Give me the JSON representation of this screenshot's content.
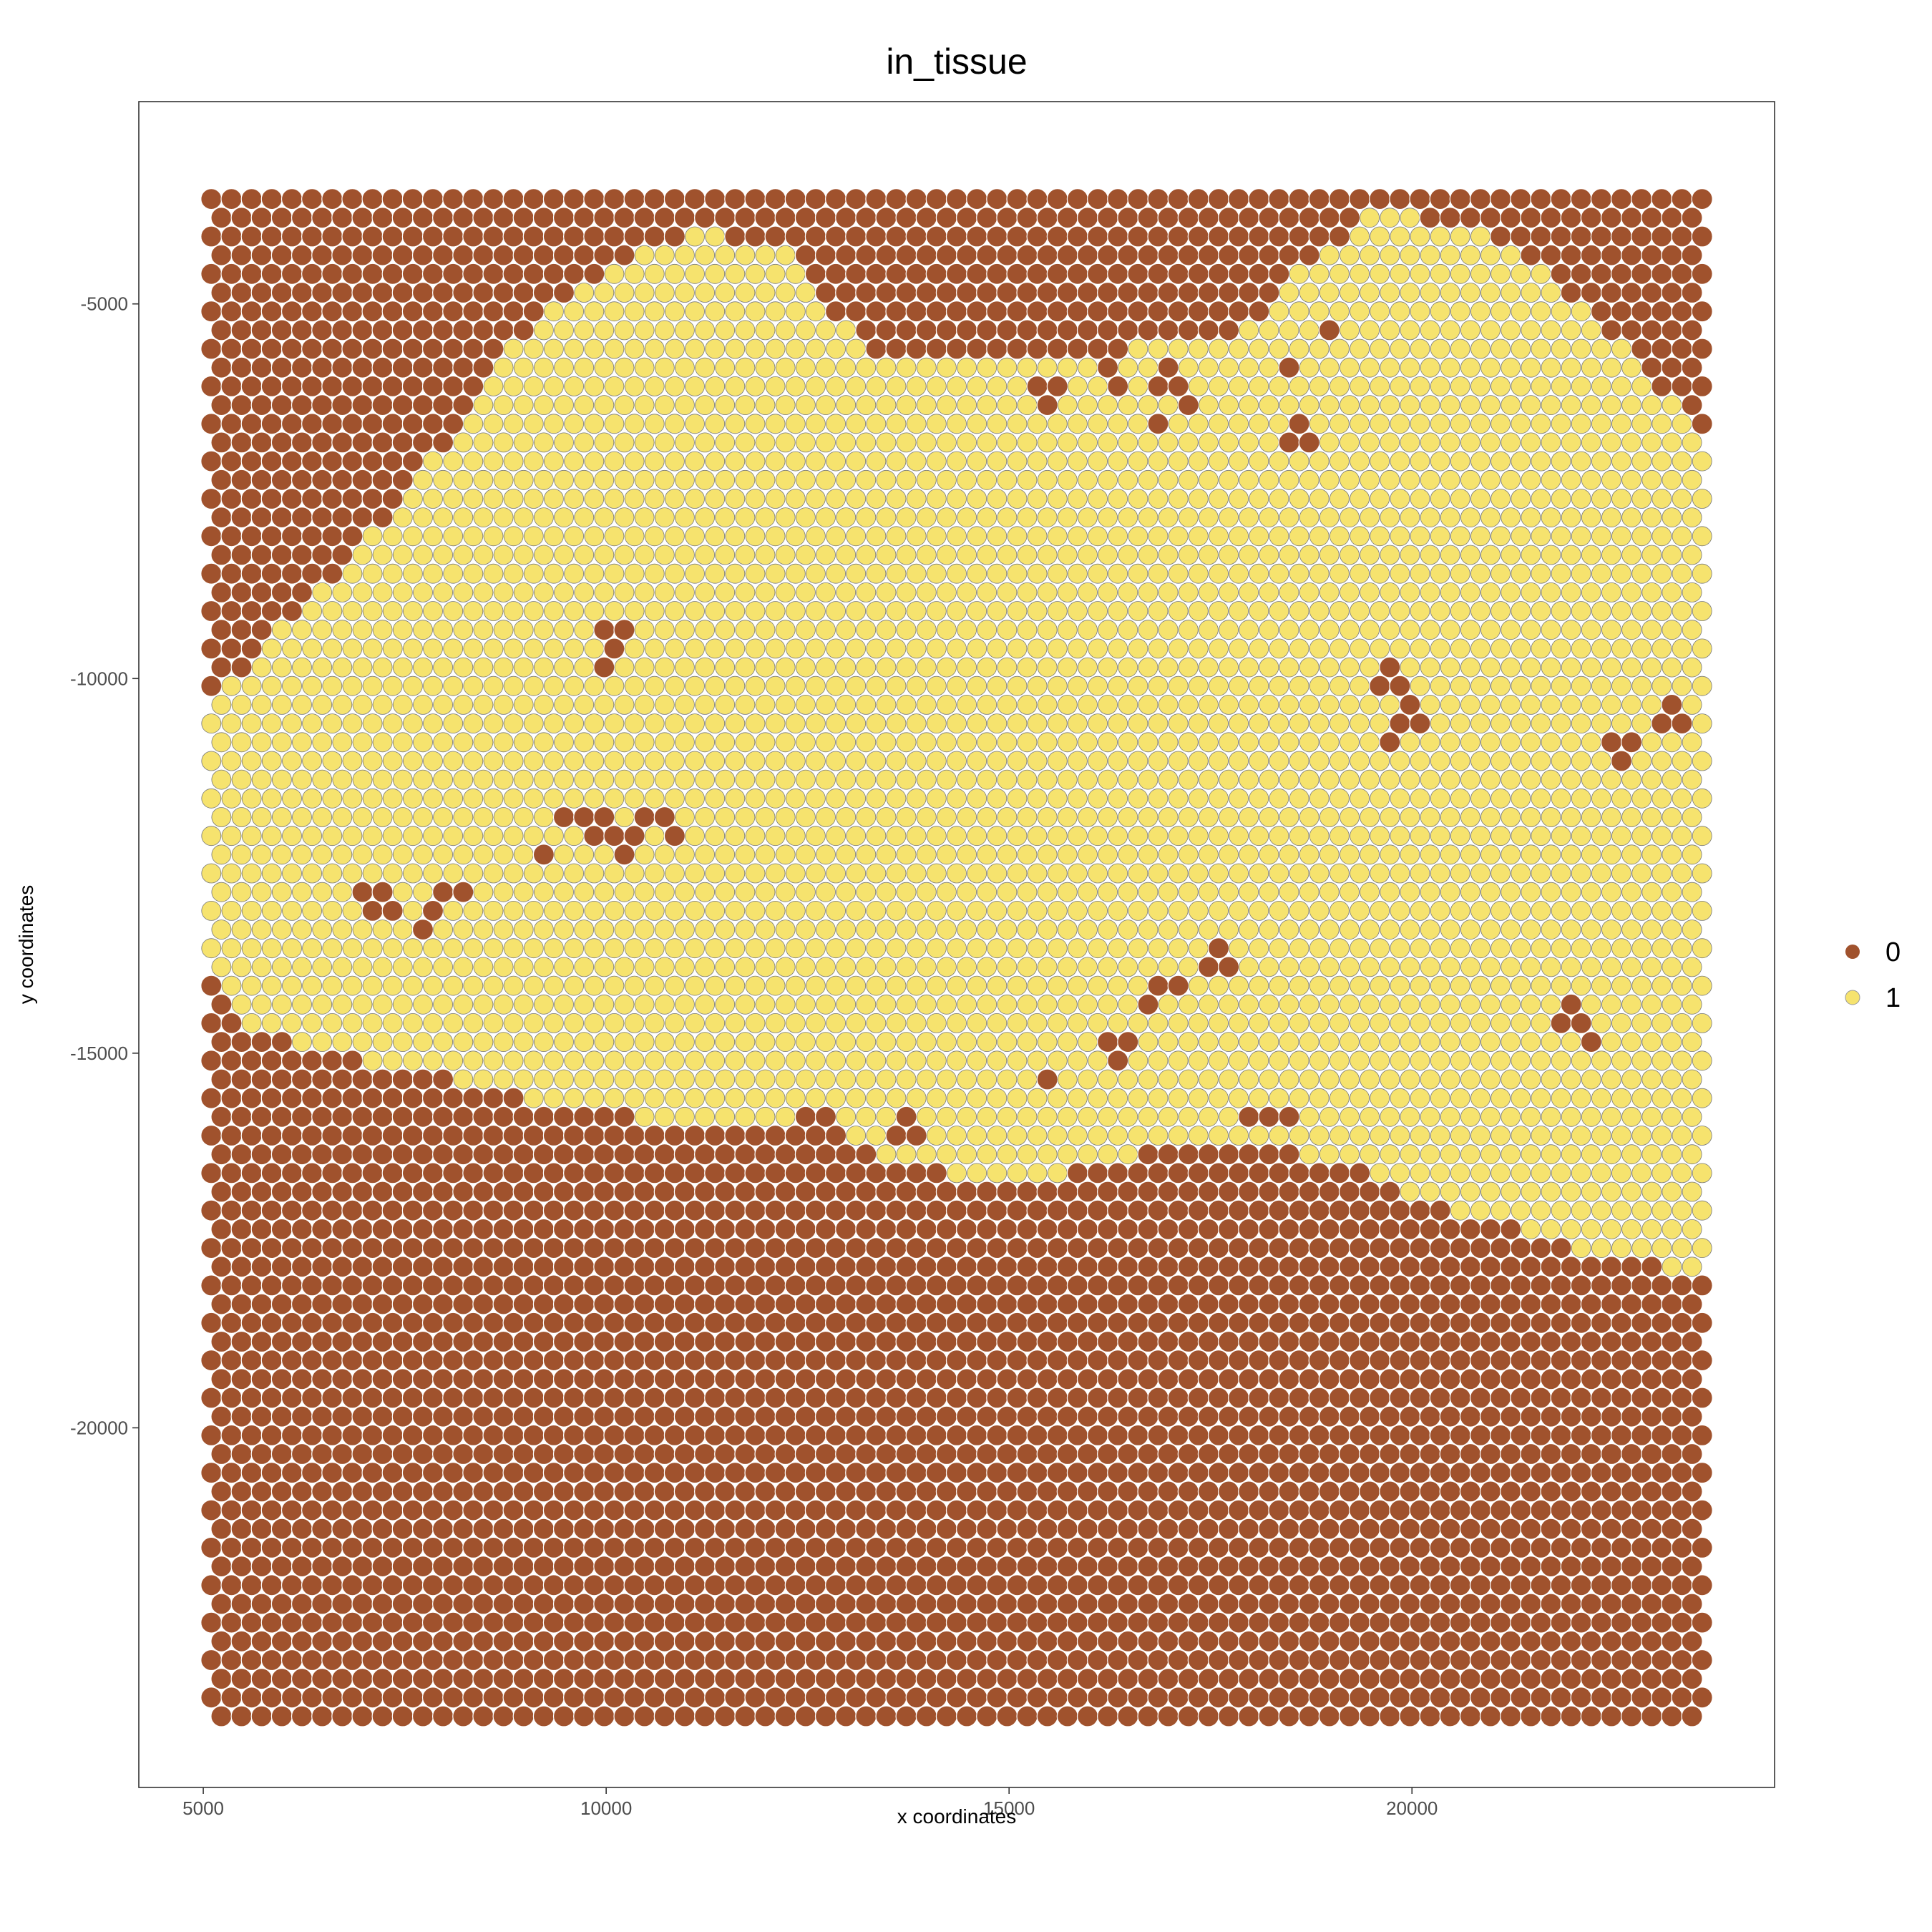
{
  "chart_data": {
    "type": "scatter",
    "title": "in_tissue",
    "xlabel": "x coordinates",
    "ylabel": "y coordinates",
    "xlim": [
      4200,
      24500
    ],
    "ylim": [
      -24800,
      -2300
    ],
    "x_ticks": [
      {
        "value": 5000,
        "label": "5000"
      },
      {
        "value": 10000,
        "label": "10000"
      },
      {
        "value": 15000,
        "label": "15000"
      },
      {
        "value": 20000,
        "label": "20000"
      }
    ],
    "y_ticks": [
      {
        "value": -5000,
        "label": "-5000"
      },
      {
        "value": -10000,
        "label": "-10000"
      },
      {
        "value": -15000,
        "label": "-15000"
      },
      {
        "value": -20000,
        "label": "-20000"
      }
    ],
    "grid": false,
    "legend_position": "right",
    "series": [
      {
        "name": "0",
        "color": "#a0522d"
      },
      {
        "name": "1",
        "color": "#f6e36e"
      }
    ],
    "spot_grid": {
      "x_start": 5100,
      "x_end": 23700,
      "x_step": 250,
      "y_start": -3600,
      "y_end": -23900,
      "y_step": 250,
      "odd_row_x_offset": 125
    },
    "in_tissue_outline": [
      [
        5100,
        -10300
      ],
      [
        5700,
        -9600
      ],
      [
        6300,
        -9000
      ],
      [
        7000,
        -8200
      ],
      [
        7600,
        -7500
      ],
      [
        8200,
        -6500
      ],
      [
        8700,
        -5800
      ],
      [
        9300,
        -5000
      ],
      [
        10000,
        -4500
      ],
      [
        11200,
        -4000
      ],
      [
        12200,
        -4300
      ],
      [
        12700,
        -5000
      ],
      [
        13500,
        -5800
      ],
      [
        15000,
        -5800
      ],
      [
        16500,
        -5600
      ],
      [
        17800,
        -5500
      ],
      [
        18500,
        -4600
      ],
      [
        19500,
        -3800
      ],
      [
        20500,
        -3900
      ],
      [
        21500,
        -4400
      ],
      [
        22300,
        -5200
      ],
      [
        23000,
        -6000
      ],
      [
        23700,
        -6900
      ],
      [
        23700,
        -17900
      ],
      [
        22500,
        -17800
      ],
      [
        21500,
        -17400
      ],
      [
        20500,
        -17100
      ],
      [
        19000,
        -16400
      ],
      [
        17000,
        -16200
      ],
      [
        15000,
        -16800
      ],
      [
        13500,
        -16400
      ],
      [
        12000,
        -16000
      ],
      [
        10500,
        -15900
      ],
      [
        9000,
        -15600
      ],
      [
        7500,
        -15200
      ],
      [
        6500,
        -15000
      ],
      [
        5500,
        -14600
      ],
      [
        5100,
        -13800
      ]
    ],
    "out_of_tissue_spots": [
      [
        10100,
        -9500
      ],
      [
        9900,
        -9900
      ],
      [
        9500,
        -11800
      ],
      [
        9800,
        -12000
      ],
      [
        10000,
        -11800
      ],
      [
        10200,
        -12200
      ],
      [
        10600,
        -11800
      ],
      [
        10800,
        -12000
      ],
      [
        9300,
        -12300
      ],
      [
        8100,
        -12900
      ],
      [
        7800,
        -13200
      ],
      [
        7000,
        -12800
      ],
      [
        7200,
        -13000
      ],
      [
        19700,
        -10000
      ],
      [
        19900,
        -10300
      ],
      [
        20000,
        -10500
      ],
      [
        19800,
        -10700
      ],
      [
        17000,
        -14100
      ],
      [
        16800,
        -14400
      ],
      [
        16500,
        -14800
      ],
      [
        16300,
        -15000
      ],
      [
        18100,
        -15800
      ],
      [
        18400,
        -15800
      ],
      [
        22000,
        -14500
      ],
      [
        22300,
        -14800
      ],
      [
        22600,
        -11000
      ],
      [
        23200,
        -10500
      ],
      [
        12500,
        -16000
      ],
      [
        12700,
        -16000
      ],
      [
        13700,
        -16000
      ],
      [
        15500,
        -15300
      ],
      [
        17600,
        -13700
      ],
      [
        16300,
        -6000
      ],
      [
        17000,
        -6000
      ],
      [
        17200,
        -6300
      ],
      [
        16900,
        -6600
      ],
      [
        18400,
        -5800
      ],
      [
        18900,
        -5300
      ],
      [
        15500,
        -6200
      ],
      [
        18600,
        -6700
      ]
    ]
  }
}
